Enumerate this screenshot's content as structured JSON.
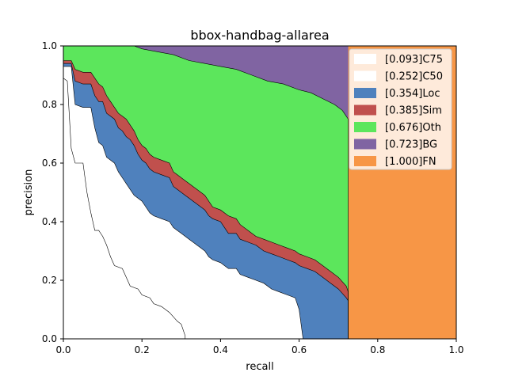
{
  "chart_data": {
    "type": "area",
    "title": "bbox-handbag-allarea",
    "xlabel": "recall",
    "ylabel": "precision",
    "xlim": [
      0,
      1
    ],
    "ylim": [
      0,
      1
    ],
    "xticks": [
      "0.0",
      "0.2",
      "0.4",
      "0.6",
      "0.8",
      "1.0"
    ],
    "yticks": [
      "0.0",
      "0.2",
      "0.4",
      "0.6",
      "0.8",
      "1.0"
    ],
    "grid": false,
    "legend_position": "upper right",
    "series": [
      {
        "name": "[0.093]C75",
        "color": "#ffffff",
        "points": [
          [
            0,
            0.89
          ],
          [
            0.01,
            0.88
          ],
          [
            0.02,
            0.65
          ],
          [
            0.03,
            0.6
          ],
          [
            0.05,
            0.6
          ],
          [
            0.06,
            0.5
          ],
          [
            0.07,
            0.43
          ],
          [
            0.08,
            0.37
          ],
          [
            0.09,
            0.37
          ],
          [
            0.1,
            0.35
          ],
          [
            0.11,
            0.32
          ],
          [
            0.12,
            0.28
          ],
          [
            0.13,
            0.25
          ],
          [
            0.15,
            0.24
          ],
          [
            0.16,
            0.21
          ],
          [
            0.17,
            0.18
          ],
          [
            0.19,
            0.17
          ],
          [
            0.2,
            0.15
          ],
          [
            0.22,
            0.14
          ],
          [
            0.23,
            0.12
          ],
          [
            0.25,
            0.11
          ],
          [
            0.27,
            0.09
          ],
          [
            0.29,
            0.06
          ],
          [
            0.3,
            0.05
          ],
          [
            0.31,
            0.01
          ],
          [
            0.31,
            0
          ]
        ]
      },
      {
        "name": "[0.252]C50",
        "color": "#ffffff",
        "points": [
          [
            0,
            0.93
          ],
          [
            0.02,
            0.93
          ],
          [
            0.03,
            0.8
          ],
          [
            0.05,
            0.79
          ],
          [
            0.07,
            0.79
          ],
          [
            0.08,
            0.72
          ],
          [
            0.09,
            0.67
          ],
          [
            0.1,
            0.66
          ],
          [
            0.11,
            0.62
          ],
          [
            0.12,
            0.61
          ],
          [
            0.13,
            0.6
          ],
          [
            0.14,
            0.57
          ],
          [
            0.15,
            0.55
          ],
          [
            0.16,
            0.53
          ],
          [
            0.17,
            0.51
          ],
          [
            0.18,
            0.49
          ],
          [
            0.19,
            0.48
          ],
          [
            0.2,
            0.47
          ],
          [
            0.21,
            0.45
          ],
          [
            0.22,
            0.43
          ],
          [
            0.23,
            0.42
          ],
          [
            0.25,
            0.41
          ],
          [
            0.27,
            0.4
          ],
          [
            0.28,
            0.38
          ],
          [
            0.29,
            0.37
          ],
          [
            0.3,
            0.36
          ],
          [
            0.31,
            0.35
          ],
          [
            0.32,
            0.34
          ],
          [
            0.33,
            0.33
          ],
          [
            0.34,
            0.32
          ],
          [
            0.35,
            0.31
          ],
          [
            0.36,
            0.3
          ],
          [
            0.37,
            0.28
          ],
          [
            0.38,
            0.27
          ],
          [
            0.4,
            0.26
          ],
          [
            0.41,
            0.25
          ],
          [
            0.42,
            0.24
          ],
          [
            0.44,
            0.24
          ],
          [
            0.45,
            0.22
          ],
          [
            0.47,
            0.21
          ],
          [
            0.49,
            0.2
          ],
          [
            0.51,
            0.19
          ],
          [
            0.53,
            0.17
          ],
          [
            0.55,
            0.16
          ],
          [
            0.57,
            0.15
          ],
          [
            0.59,
            0.14
          ],
          [
            0.6,
            0.1
          ],
          [
            0.605,
            0.05
          ],
          [
            0.61,
            0
          ]
        ]
      },
      {
        "name": "[0.354]Loc",
        "color": "#4f81bd",
        "points": [
          [
            0,
            0.94
          ],
          [
            0.02,
            0.94
          ],
          [
            0.03,
            0.88
          ],
          [
            0.05,
            0.87
          ],
          [
            0.07,
            0.87
          ],
          [
            0.08,
            0.83
          ],
          [
            0.09,
            0.81
          ],
          [
            0.1,
            0.81
          ],
          [
            0.11,
            0.77
          ],
          [
            0.12,
            0.76
          ],
          [
            0.13,
            0.75
          ],
          [
            0.14,
            0.72
          ],
          [
            0.15,
            0.71
          ],
          [
            0.16,
            0.69
          ],
          [
            0.17,
            0.68
          ],
          [
            0.18,
            0.66
          ],
          [
            0.19,
            0.63
          ],
          [
            0.2,
            0.61
          ],
          [
            0.21,
            0.6
          ],
          [
            0.22,
            0.58
          ],
          [
            0.23,
            0.57
          ],
          [
            0.25,
            0.56
          ],
          [
            0.27,
            0.55
          ],
          [
            0.28,
            0.52
          ],
          [
            0.29,
            0.51
          ],
          [
            0.3,
            0.5
          ],
          [
            0.31,
            0.49
          ],
          [
            0.32,
            0.48
          ],
          [
            0.33,
            0.47
          ],
          [
            0.34,
            0.46
          ],
          [
            0.35,
            0.45
          ],
          [
            0.36,
            0.44
          ],
          [
            0.37,
            0.42
          ],
          [
            0.38,
            0.41
          ],
          [
            0.4,
            0.4
          ],
          [
            0.41,
            0.38
          ],
          [
            0.42,
            0.36
          ],
          [
            0.44,
            0.36
          ],
          [
            0.45,
            0.34
          ],
          [
            0.47,
            0.33
          ],
          [
            0.49,
            0.32
          ],
          [
            0.51,
            0.3
          ],
          [
            0.53,
            0.29
          ],
          [
            0.55,
            0.28
          ],
          [
            0.57,
            0.27
          ],
          [
            0.59,
            0.26
          ],
          [
            0.6,
            0.25
          ],
          [
            0.62,
            0.24
          ],
          [
            0.64,
            0.23
          ],
          [
            0.66,
            0.21
          ],
          [
            0.68,
            0.19
          ],
          [
            0.7,
            0.17
          ],
          [
            0.72,
            0.14
          ],
          [
            0.725,
            0.13
          ]
        ]
      },
      {
        "name": "[0.385]Sim",
        "color": "#c0504d",
        "points": [
          [
            0,
            0.95
          ],
          [
            0.02,
            0.95
          ],
          [
            0.03,
            0.92
          ],
          [
            0.05,
            0.91
          ],
          [
            0.07,
            0.91
          ],
          [
            0.08,
            0.89
          ],
          [
            0.09,
            0.87
          ],
          [
            0.1,
            0.86
          ],
          [
            0.11,
            0.83
          ],
          [
            0.12,
            0.81
          ],
          [
            0.13,
            0.79
          ],
          [
            0.14,
            0.77
          ],
          [
            0.15,
            0.76
          ],
          [
            0.16,
            0.75
          ],
          [
            0.17,
            0.73
          ],
          [
            0.18,
            0.71
          ],
          [
            0.19,
            0.68
          ],
          [
            0.2,
            0.66
          ],
          [
            0.21,
            0.65
          ],
          [
            0.22,
            0.63
          ],
          [
            0.23,
            0.62
          ],
          [
            0.25,
            0.61
          ],
          [
            0.27,
            0.6
          ],
          [
            0.28,
            0.57
          ],
          [
            0.29,
            0.56
          ],
          [
            0.3,
            0.55
          ],
          [
            0.31,
            0.54
          ],
          [
            0.32,
            0.53
          ],
          [
            0.33,
            0.52
          ],
          [
            0.34,
            0.51
          ],
          [
            0.35,
            0.5
          ],
          [
            0.36,
            0.49
          ],
          [
            0.37,
            0.47
          ],
          [
            0.38,
            0.45
          ],
          [
            0.4,
            0.44
          ],
          [
            0.41,
            0.43
          ],
          [
            0.42,
            0.42
          ],
          [
            0.44,
            0.41
          ],
          [
            0.45,
            0.39
          ],
          [
            0.47,
            0.37
          ],
          [
            0.49,
            0.35
          ],
          [
            0.51,
            0.34
          ],
          [
            0.53,
            0.33
          ],
          [
            0.55,
            0.32
          ],
          [
            0.57,
            0.31
          ],
          [
            0.59,
            0.3
          ],
          [
            0.6,
            0.29
          ],
          [
            0.62,
            0.28
          ],
          [
            0.64,
            0.27
          ],
          [
            0.66,
            0.25
          ],
          [
            0.68,
            0.23
          ],
          [
            0.7,
            0.21
          ],
          [
            0.72,
            0.18
          ],
          [
            0.725,
            0.16
          ]
        ]
      },
      {
        "name": "[0.676]Oth",
        "color": "#5ce65c",
        "points": [
          [
            0,
            1
          ],
          [
            0.18,
            1
          ],
          [
            0.2,
            0.99
          ],
          [
            0.24,
            0.98
          ],
          [
            0.28,
            0.97
          ],
          [
            0.32,
            0.95
          ],
          [
            0.36,
            0.94
          ],
          [
            0.4,
            0.93
          ],
          [
            0.44,
            0.92
          ],
          [
            0.48,
            0.9
          ],
          [
            0.52,
            0.88
          ],
          [
            0.56,
            0.87
          ],
          [
            0.6,
            0.85
          ],
          [
            0.63,
            0.84
          ],
          [
            0.66,
            0.82
          ],
          [
            0.69,
            0.8
          ],
          [
            0.71,
            0.78
          ],
          [
            0.72,
            0.76
          ],
          [
            0.725,
            0.75
          ]
        ]
      },
      {
        "name": "[0.723]BG",
        "color": "#8064a2",
        "points": [
          [
            0,
            1
          ],
          [
            0.725,
            1
          ]
        ]
      },
      {
        "name": "[1.000]FN",
        "color": "#f79646",
        "points": [
          [
            0,
            1
          ],
          [
            1,
            1
          ]
        ]
      }
    ]
  }
}
